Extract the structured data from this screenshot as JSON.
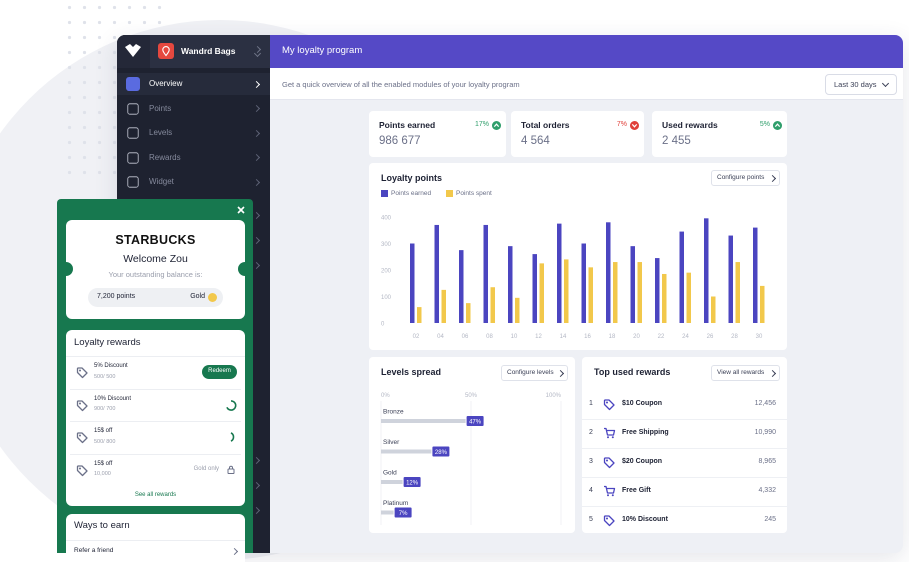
{
  "app": {
    "store": "Wandrd Bags",
    "page_title": "My loyalty program",
    "subtitle": "Get a quick overview of all the enabled modules of your loyalty program",
    "date_range": "Last 30 days",
    "nav": [
      "Overview",
      "Points",
      "Levels",
      "Rewards",
      "Widget"
    ],
    "active_nav": 0
  },
  "stats": [
    {
      "label": "Points earned",
      "change": "17%",
      "direction": "up",
      "value": "986 677"
    },
    {
      "label": "Total orders",
      "change": "7%",
      "direction": "down",
      "value": "4 564"
    },
    {
      "label": "Used rewards",
      "change": "5%",
      "direction": "up",
      "value": "2 455"
    }
  ],
  "chart_data": [
    {
      "type": "bar",
      "title": "Loyalty points",
      "action": "Configure points",
      "categories": [
        "02",
        "04",
        "06",
        "08",
        "10",
        "12",
        "14",
        "16",
        "18",
        "20",
        "22",
        "24",
        "26",
        "28",
        "30"
      ],
      "series": [
        {
          "name": "Points earned",
          "color": "#4b45c0",
          "values": [
            300,
            370,
            275,
            370,
            290,
            260,
            375,
            300,
            380,
            290,
            245,
            345,
            395,
            330,
            360
          ]
        },
        {
          "name": "Points spent",
          "color": "#f2c84b",
          "values": [
            60,
            125,
            75,
            135,
            95,
            225,
            240,
            210,
            230,
            230,
            185,
            190,
            100,
            230,
            140
          ]
        }
      ],
      "ylim": [
        0,
        400
      ],
      "yticks": [
        0,
        100,
        200,
        300,
        400
      ]
    },
    {
      "type": "bar",
      "orientation": "horizontal",
      "title": "Levels spread",
      "action": "Configure levels",
      "categories": [
        "Bronze",
        "Silver",
        "Gold",
        "Platinum"
      ],
      "values": [
        47,
        28,
        12,
        7
      ],
      "value_labels": [
        "47%",
        "28%",
        "12%",
        "7%"
      ],
      "color": "#4b45c0",
      "xlim": [
        0,
        100
      ],
      "xticks": [
        {
          "value": 0,
          "label": "0%"
        },
        {
          "value": 50,
          "label": "50%"
        },
        {
          "value": 100,
          "label": "100%"
        }
      ],
      "grid": true
    }
  ],
  "top_rewards": {
    "title": "Top used rewards",
    "action": "View all rewards",
    "rows": [
      {
        "rank": "1",
        "icon": "tag",
        "name": "$10 Coupon",
        "count": "12,456"
      },
      {
        "rank": "2",
        "icon": "cart",
        "name": "Free Shipping",
        "count": "10,990"
      },
      {
        "rank": "3",
        "icon": "tag",
        "name": "$20 Coupon",
        "count": "8,965"
      },
      {
        "rank": "4",
        "icon": "cart",
        "name": "Free Gift",
        "count": "4,332"
      },
      {
        "rank": "5",
        "icon": "tag",
        "name": "10% Discount",
        "count": "245"
      }
    ]
  },
  "widget": {
    "brand": "STARBUCKS",
    "greeting": "Welcome Zou",
    "balance_label": "Your outstanding balance is:",
    "points": "7,200 points",
    "level": "Gold",
    "rewards_title": "Loyalty rewards",
    "rewards": [
      {
        "name": "5% Discount",
        "progress": "500/ 500",
        "action": "Redeem"
      },
      {
        "name": "10% Discount",
        "progress": "900/ 700"
      },
      {
        "name": "15$ off",
        "progress": "500/ 800"
      },
      {
        "name": "15$ off",
        "progress": "10,000",
        "note": "Gold only"
      }
    ],
    "see_all": "See all rewards",
    "earn_title": "Ways to earn",
    "earn_items": [
      "Refer a friend"
    ]
  }
}
